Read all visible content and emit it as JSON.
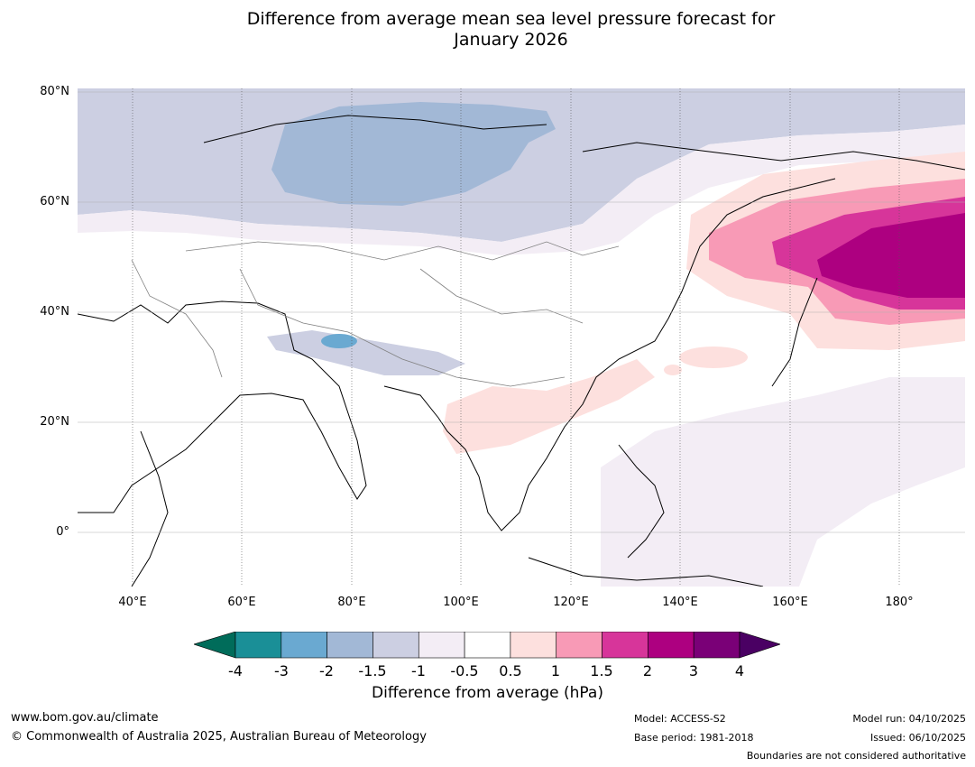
{
  "title_line1": "Difference from average mean sea level pressure forecast for",
  "title_line2": "January 2026",
  "lat_labels": [
    "80°N",
    "60°N",
    "40°N",
    "20°N",
    "0°"
  ],
  "lon_labels": [
    "40°E",
    "60°E",
    "80°E",
    "100°E",
    "120°E",
    "140°E",
    "160°E",
    "180°"
  ],
  "colorbar": {
    "ticks": [
      "-4",
      "-3",
      "-2",
      "-1.5",
      "-1",
      "-0.5",
      "0.5",
      "1",
      "1.5",
      "2",
      "3",
      "4"
    ],
    "colors": [
      "#1a8f97",
      "#6aa9d1",
      "#a2b8d6",
      "#cccfe2",
      "#f3edf5",
      "#ffffff",
      "#fde0de",
      "#f89ab6",
      "#d7359a",
      "#ad0080",
      "#7a0077"
    ],
    "low_extend_color": "#006c5a",
    "high_extend_color": "#4a0063",
    "label": "Difference from average (hPa)"
  },
  "footer": {
    "url": "www.bom.gov.au/climate",
    "copyright": "© Commonwealth of Australia 2025, Australian Bureau of Meteorology",
    "model": "Model: ACCESS-S2",
    "base_period": "Base period: 1981-2018",
    "model_run": "Model run: 04/10/2025",
    "issued": "Issued: 06/10/2025",
    "disclaimer": "Boundaries are not considered authoritative"
  }
}
